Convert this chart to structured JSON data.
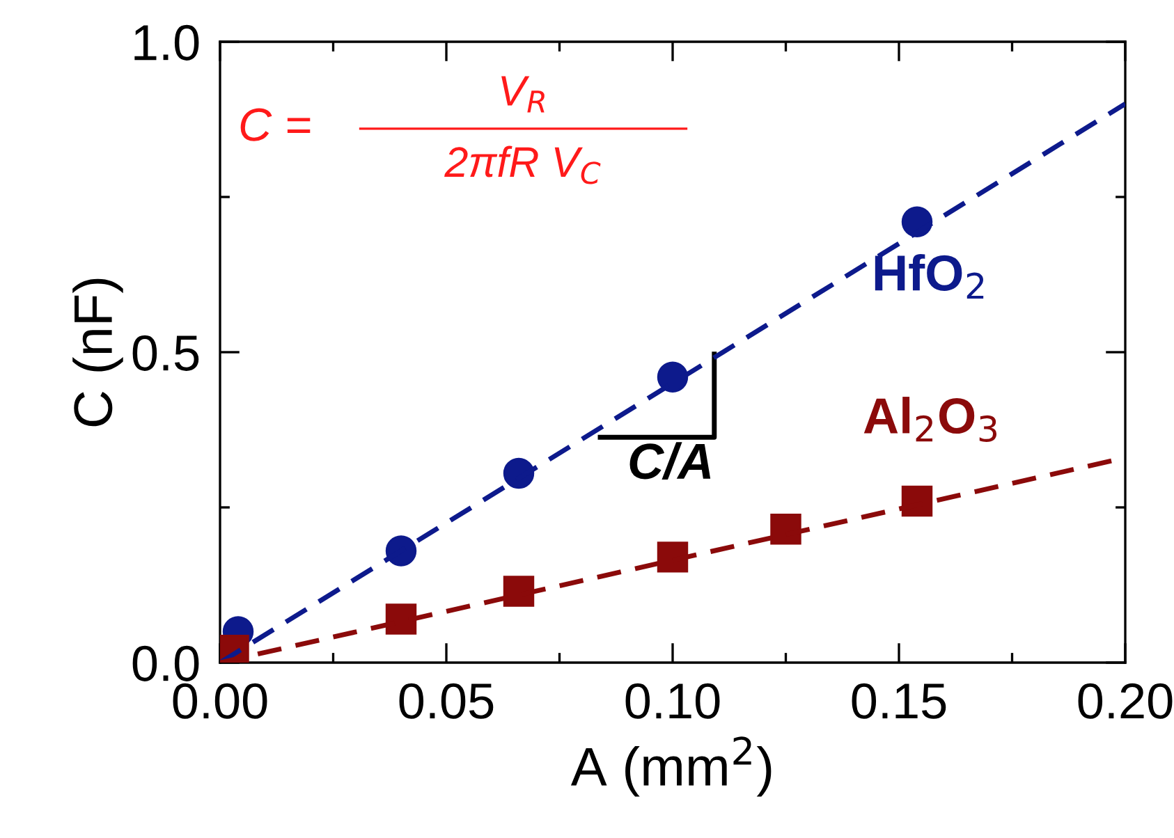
{
  "chart_data": {
    "type": "scatter",
    "xlabel": "A (mm$^{2}$)",
    "ylabel": "C (nF)",
    "xlim": [
      0,
      0.2
    ],
    "ylim": [
      0,
      1.0
    ],
    "xticks": [
      {
        "value": 0,
        "label": "0.00"
      },
      {
        "value": 0.05,
        "label": "0.05"
      },
      {
        "value": 0.1,
        "label": "0.10"
      },
      {
        "value": 0.15,
        "label": "0.15"
      },
      {
        "value": 0.2,
        "label": "0.20"
      }
    ],
    "yticks": [
      {
        "value": 0,
        "label": "0.0"
      },
      {
        "value": 0.5,
        "label": "0.5"
      },
      {
        "value": 1.0,
        "label": "1.0"
      }
    ],
    "series": [
      {
        "name": "HfO$_{2}$",
        "color": "#0d1a8c",
        "marker": "circle",
        "x": [
          0.004,
          0.04,
          0.066,
          0.1,
          0.154
        ],
        "values": [
          0.05,
          0.18,
          0.305,
          0.46,
          0.71
        ]
      },
      {
        "name": "Al$_{2}$O$_{3}$",
        "color": "#8b0a0a",
        "marker": "square",
        "x": [
          0.003,
          0.04,
          0.066,
          0.1,
          0.125,
          0.154
        ],
        "values": [
          0.02,
          0.07,
          0.115,
          0.17,
          0.215,
          0.26
        ]
      },
      {
        "type": "line",
        "color": "#0d1a8c",
        "line_style": "dashed",
        "marker": "none",
        "x": [
          0,
          0.2
        ],
        "values": [
          0,
          0.9
        ]
      },
      {
        "type": "line",
        "color": "#8b0a0a",
        "line_style": "dashed",
        "marker": "none",
        "x": [
          0,
          0.2
        ],
        "values": [
          0,
          0.33
        ]
      }
    ],
    "annotations": [
      "C =",
      "V$_{R}$",
      "2πfR V$_{C}$",
      {
        "text": "C/A",
        "x": 0.1,
        "y": 0.45
      }
    ]
  }
}
